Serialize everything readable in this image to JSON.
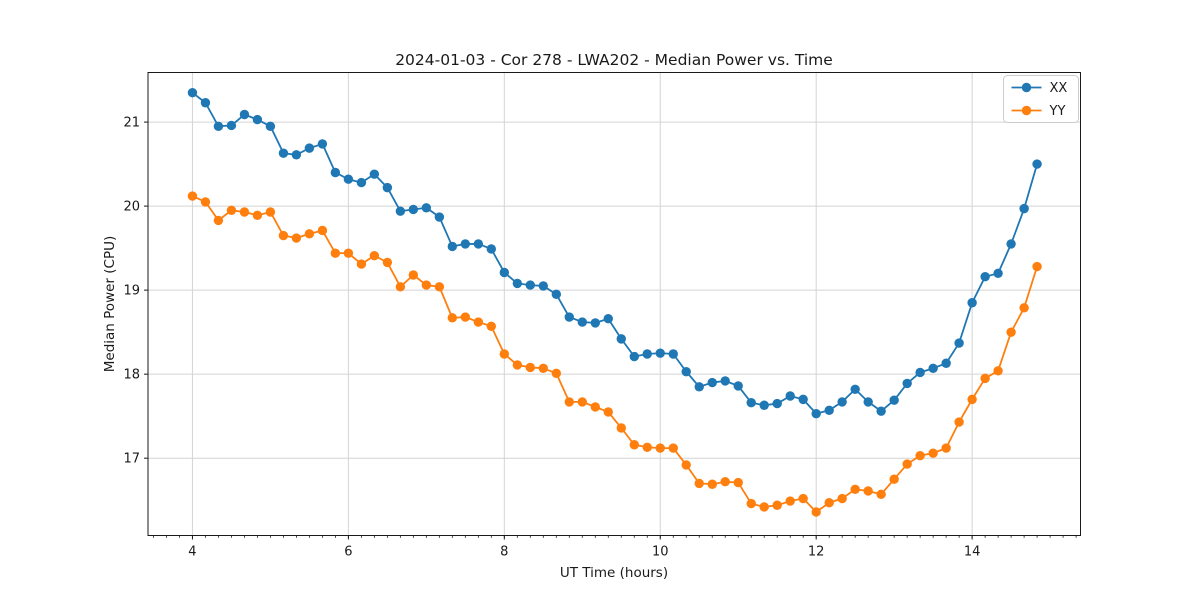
{
  "chart_data": {
    "type": "line",
    "title": "2024-01-03 - Cor 278 - LWA202 - Median Power vs. Time",
    "xlabel": "UT Time (hours)",
    "ylabel": "Median Power (CPU)",
    "xlim": [
      3.43,
      15.39
    ],
    "ylim": [
      16.08,
      21.59
    ],
    "x_ticks": [
      4,
      6,
      8,
      10,
      12,
      14
    ],
    "y_ticks": [
      17,
      18,
      19,
      20,
      21
    ],
    "x_minor_step": 0.166667,
    "grid": true,
    "grid_color": "#d4d4d4",
    "legend_position": "upper right",
    "marker": "circle",
    "x": [
      4.0,
      4.167,
      4.333,
      4.5,
      4.667,
      4.833,
      5.0,
      5.167,
      5.333,
      5.5,
      5.667,
      5.833,
      6.0,
      6.167,
      6.333,
      6.5,
      6.667,
      6.833,
      7.0,
      7.167,
      7.333,
      7.5,
      7.667,
      7.833,
      8.0,
      8.167,
      8.333,
      8.5,
      8.667,
      8.833,
      9.0,
      9.167,
      9.333,
      9.5,
      9.667,
      9.833,
      10.0,
      10.167,
      10.333,
      10.5,
      10.667,
      10.833,
      11.0,
      11.167,
      11.333,
      11.5,
      11.667,
      11.833,
      12.0,
      12.167,
      12.333,
      12.5,
      12.667,
      12.833,
      13.0,
      13.167,
      13.333,
      13.5,
      13.667,
      13.833,
      14.0,
      14.167,
      14.333,
      14.5,
      14.667,
      14.833
    ],
    "series": [
      {
        "name": "XX",
        "color": "#1f77b4",
        "values": [
          21.35,
          21.23,
          20.95,
          20.96,
          21.09,
          21.03,
          20.95,
          20.63,
          20.61,
          20.69,
          20.74,
          20.4,
          20.32,
          20.28,
          20.38,
          20.22,
          19.94,
          19.96,
          19.98,
          19.87,
          19.52,
          19.55,
          19.55,
          19.49,
          19.21,
          19.08,
          19.06,
          19.05,
          18.95,
          18.68,
          18.62,
          18.61,
          18.66,
          18.42,
          18.21,
          18.24,
          18.25,
          18.24,
          18.03,
          17.85,
          17.9,
          17.92,
          17.86,
          17.66,
          17.63,
          17.65,
          17.74,
          17.7,
          17.53,
          17.57,
          17.67,
          17.82,
          17.67,
          17.56,
          17.69,
          17.89,
          18.02,
          18.07,
          18.13,
          18.37,
          18.85,
          19.16,
          19.2,
          19.55,
          19.97,
          20.5
        ]
      },
      {
        "name": "YY",
        "color": "#ff7f0e",
        "values": [
          20.12,
          20.05,
          19.83,
          19.95,
          19.93,
          19.89,
          19.93,
          19.65,
          19.62,
          19.67,
          19.71,
          19.44,
          19.44,
          19.31,
          19.41,
          19.33,
          19.04,
          19.18,
          19.06,
          19.04,
          18.67,
          18.68,
          18.62,
          18.57,
          18.24,
          18.11,
          18.08,
          18.07,
          18.01,
          17.67,
          17.67,
          17.61,
          17.55,
          17.36,
          17.16,
          17.13,
          17.12,
          17.12,
          16.92,
          16.7,
          16.69,
          16.72,
          16.71,
          16.46,
          16.42,
          16.44,
          16.49,
          16.52,
          16.36,
          16.47,
          16.52,
          16.63,
          16.61,
          16.57,
          16.75,
          16.93,
          17.03,
          17.06,
          17.12,
          17.43,
          17.7,
          17.95,
          18.04,
          18.5,
          18.79,
          19.28
        ]
      }
    ]
  }
}
